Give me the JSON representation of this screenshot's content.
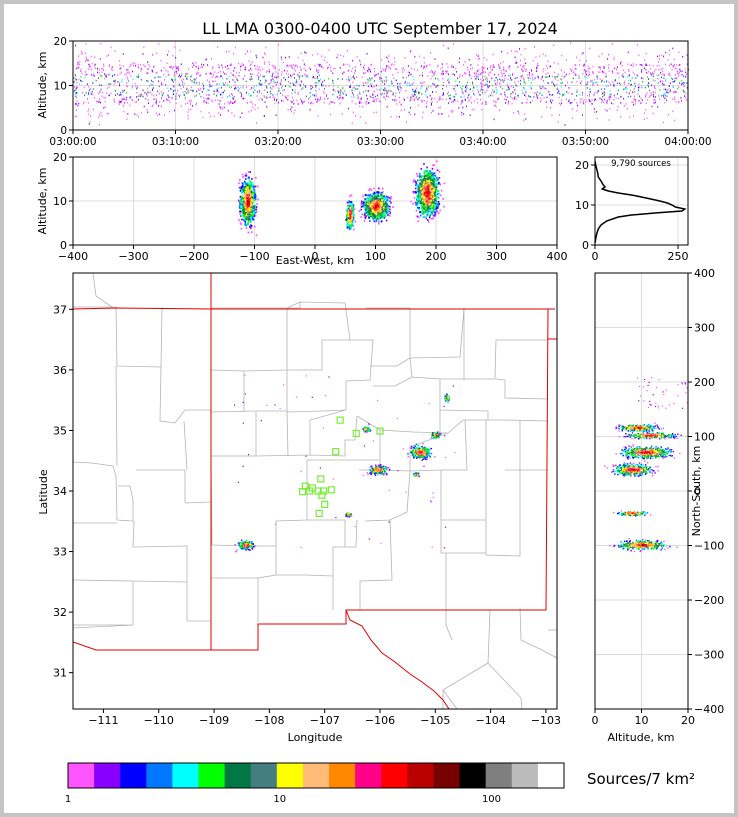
{
  "title": "LL LMA 0300-0400 UTC September 17, 2024",
  "colors": {
    "frame": "#000000",
    "state_border": "#e00000",
    "county": "#b4b4b4",
    "grid": "#dddddd",
    "station": "#77ee33"
  },
  "chart_data": [
    {
      "name": "altitude-time",
      "type": "scatter",
      "xlabel": "",
      "ylabel": "Altitude, km",
      "x_ticks": [
        "03:00:00",
        "03:10:00",
        "03:20:00",
        "03:30:00",
        "03:40:00",
        "03:50:00",
        "04:00:00"
      ],
      "x_range_minutes": [
        0,
        60
      ],
      "ylim": [
        0,
        20
      ],
      "y_ticks": [
        0,
        10,
        20
      ],
      "grid": true
    },
    {
      "name": "altitude-eastwest",
      "type": "scatter",
      "xlabel": "East-West, km",
      "ylabel": "Altitude, km",
      "xlim": [
        -400,
        400
      ],
      "x_ticks": [
        -400,
        -300,
        -200,
        -100,
        0,
        100,
        200,
        300,
        400
      ],
      "ylim": [
        0,
        20
      ],
      "y_ticks": [
        0,
        10,
        20
      ],
      "grid": true,
      "clusters_km": [
        {
          "x": -112,
          "z": 10,
          "dx": 12,
          "dz": 5
        },
        {
          "x": 57,
          "z": 7,
          "dx": 6,
          "dz": 3
        },
        {
          "x": 100,
          "z": 9,
          "dx": 20,
          "dz": 3
        },
        {
          "x": 185,
          "z": 12,
          "dx": 18,
          "dz": 5
        }
      ]
    },
    {
      "name": "altitude-histogram",
      "type": "line",
      "annotation": "9,790 sources",
      "xlim": [
        0,
        280
      ],
      "x_ticks": [
        0,
        250
      ],
      "ylim": [
        0,
        22
      ],
      "y_ticks": [
        0,
        10,
        20
      ],
      "profile": [
        {
          "alt": 0.5,
          "count": 0
        },
        {
          "alt": 2,
          "count": 3
        },
        {
          "alt": 3,
          "count": 6
        },
        {
          "alt": 4,
          "count": 10
        },
        {
          "alt": 5,
          "count": 18
        },
        {
          "alt": 6,
          "count": 35
        },
        {
          "alt": 7,
          "count": 70
        },
        {
          "alt": 7.5,
          "count": 110
        },
        {
          "alt": 8,
          "count": 180
        },
        {
          "alt": 8.5,
          "count": 262
        },
        {
          "alt": 9,
          "count": 270
        },
        {
          "alt": 9.5,
          "count": 242
        },
        {
          "alt": 10,
          "count": 232
        },
        {
          "alt": 10.5,
          "count": 218
        },
        {
          "alt": 11,
          "count": 195
        },
        {
          "alt": 11.5,
          "count": 168
        },
        {
          "alt": 12,
          "count": 140
        },
        {
          "alt": 12.5,
          "count": 110
        },
        {
          "alt": 13,
          "count": 70
        },
        {
          "alt": 13.5,
          "count": 40
        },
        {
          "alt": 14,
          "count": 22
        },
        {
          "alt": 14.5,
          "count": 30
        },
        {
          "alt": 15,
          "count": 25
        },
        {
          "alt": 16,
          "count": 18
        },
        {
          "alt": 17,
          "count": 10
        },
        {
          "alt": 18,
          "count": 8
        },
        {
          "alt": 19,
          "count": 5
        },
        {
          "alt": 20,
          "count": 2
        },
        {
          "alt": 21,
          "count": 0
        }
      ]
    },
    {
      "name": "plan-view-map",
      "type": "scatter",
      "xlabel": "Longitude",
      "ylabel": "Latitude",
      "xlim": [
        -111.55,
        -102.8
      ],
      "x_ticks": [
        -111,
        -110,
        -109,
        -108,
        -107,
        -106,
        -105,
        -104,
        -103
      ],
      "ylim": [
        30.4,
        37.6
      ],
      "y_ticks": [
        31,
        32,
        33,
        34,
        35,
        36,
        37
      ],
      "clusters_deg": [
        {
          "lon": -108.43,
          "lat": 33.12,
          "dx": 0.13,
          "dy": 0.07
        },
        {
          "lon": -106.58,
          "lat": 33.62,
          "dx": 0.05,
          "dy": 0.03
        },
        {
          "lon": -106.05,
          "lat": 34.36,
          "dx": 0.16,
          "dy": 0.07
        },
        {
          "lon": -106.25,
          "lat": 35.03,
          "dx": 0.06,
          "dy": 0.04
        },
        {
          "lon": -105.28,
          "lat": 34.65,
          "dx": 0.18,
          "dy": 0.1
        },
        {
          "lon": -105.0,
          "lat": 34.93,
          "dx": 0.08,
          "dy": 0.05
        },
        {
          "lon": -105.35,
          "lat": 34.28,
          "dx": 0.05,
          "dy": 0.03
        },
        {
          "lon": -104.8,
          "lat": 35.55,
          "dx": 0.04,
          "dy": 0.05
        }
      ],
      "stations": [
        {
          "lon": -106.72,
          "lat": 35.17
        },
        {
          "lon": -106.43,
          "lat": 34.95
        },
        {
          "lon": -106.0,
          "lat": 34.99
        },
        {
          "lon": -106.8,
          "lat": 34.65
        },
        {
          "lon": -107.35,
          "lat": 34.08
        },
        {
          "lon": -107.4,
          "lat": 33.99
        },
        {
          "lon": -107.27,
          "lat": 34.0
        },
        {
          "lon": -107.12,
          "lat": 34.0
        },
        {
          "lon": -107.02,
          "lat": 34.0
        },
        {
          "lon": -106.88,
          "lat": 34.02
        },
        {
          "lon": -107.07,
          "lat": 34.2
        },
        {
          "lon": -107.05,
          "lat": 33.93
        },
        {
          "lon": -107.0,
          "lat": 33.78
        },
        {
          "lon": -107.1,
          "lat": 33.63
        },
        {
          "lon": -107.22,
          "lat": 34.05
        }
      ]
    },
    {
      "name": "northsouth-altitude",
      "type": "scatter",
      "xlabel": "Altitude, km",
      "ylabel": "North-South, km",
      "xlim": [
        0,
        20
      ],
      "x_ticks": [
        0,
        10,
        20
      ],
      "ylim": [
        -400,
        400
      ],
      "y_ticks": [
        -400,
        -300,
        -200,
        -100,
        0,
        100,
        200,
        300,
        400
      ],
      "clusters_km": [
        {
          "y": 117,
          "z": 9,
          "dy": 6,
          "dz": 4
        },
        {
          "y": 103,
          "z": 12,
          "dy": 5,
          "dz": 5
        },
        {
          "y": 72,
          "z": 11,
          "dy": 10,
          "dz": 5
        },
        {
          "y": 40,
          "z": 8,
          "dy": 10,
          "dz": 4
        },
        {
          "y": -40,
          "z": 8,
          "dy": 4,
          "dz": 3
        },
        {
          "y": -98,
          "z": 10,
          "dy": 8,
          "dz": 5
        }
      ]
    }
  ],
  "colorbar": {
    "label": "Sources/7 km²",
    "tick_labels": [
      "1",
      "10",
      "100"
    ],
    "tick_values": [
      1,
      10,
      100
    ],
    "colors": [
      "#ff55ff",
      "#8800ff",
      "#0000ff",
      "#0077ff",
      "#00ffff",
      "#00ff00",
      "#007744",
      "#447f7f",
      "#ffff00",
      "#ffbb77",
      "#ff8800",
      "#ff0088",
      "#ff0000",
      "#bb0000",
      "#770000",
      "#000000",
      "#7f7f7f",
      "#bbbbbb",
      "#ffffff"
    ]
  }
}
